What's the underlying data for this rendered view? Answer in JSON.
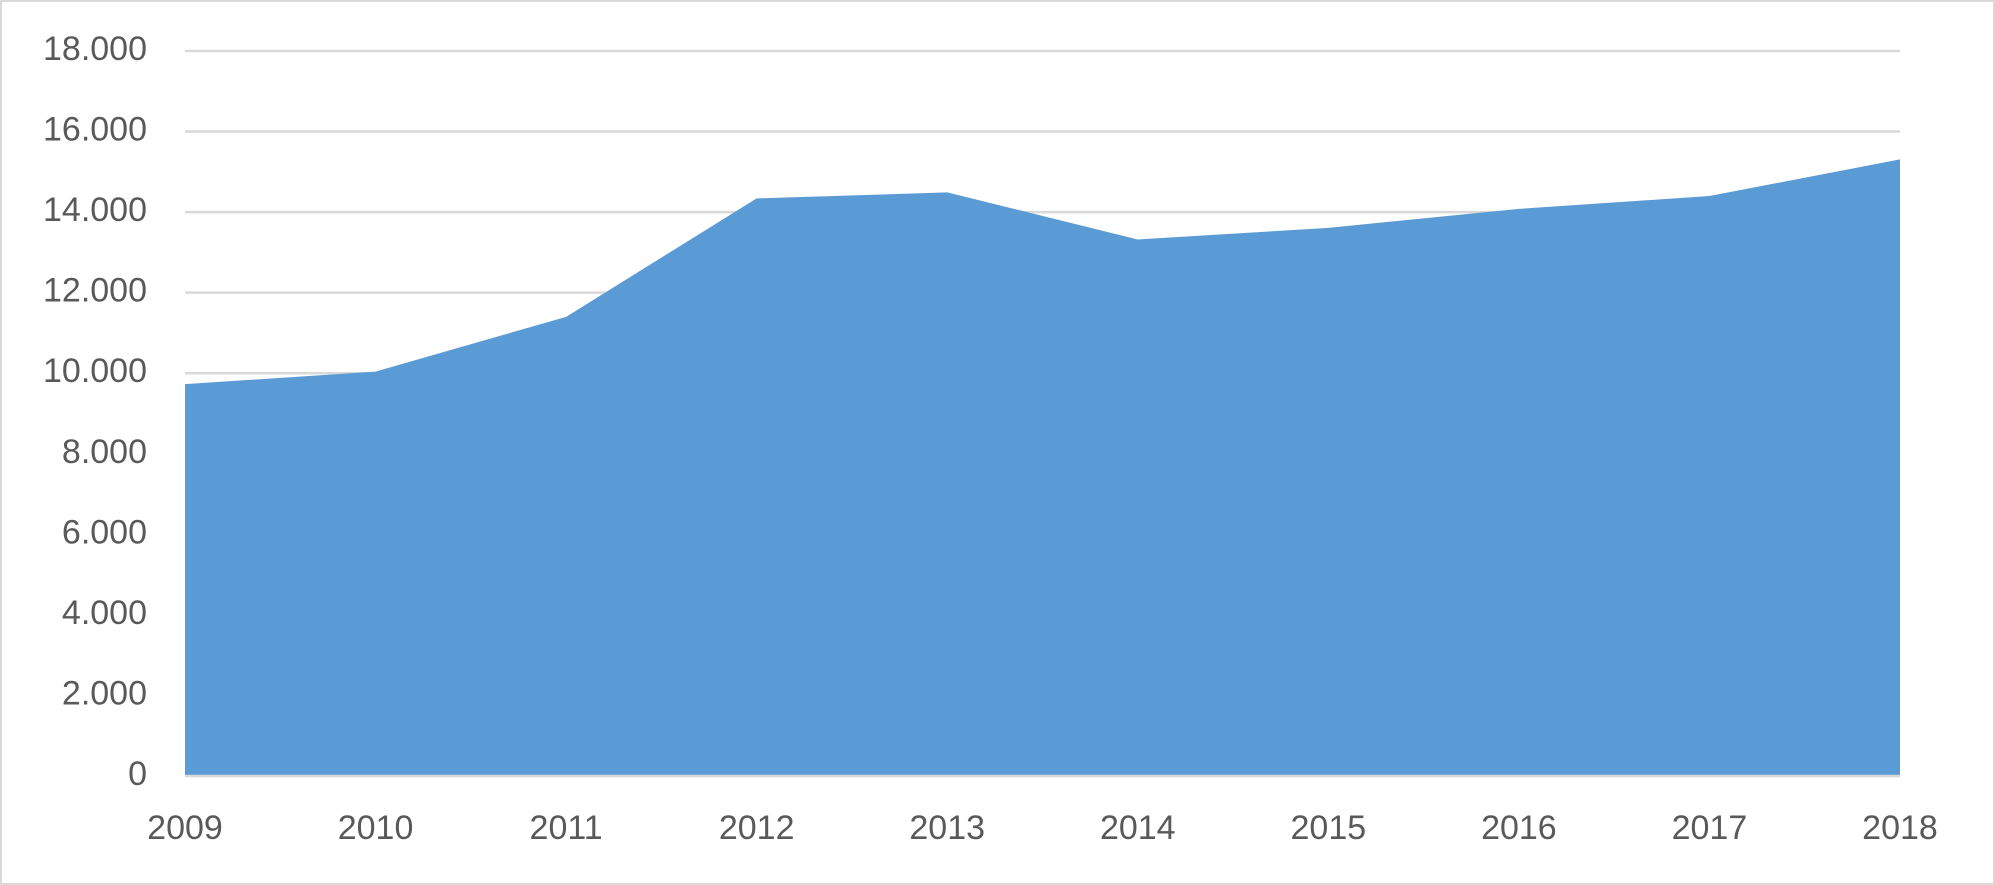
{
  "chart_data": {
    "type": "area",
    "categories": [
      "2009",
      "2010",
      "2011",
      "2012",
      "2013",
      "2014",
      "2015",
      "2016",
      "2017",
      "2018"
    ],
    "values": [
      9730,
      10040,
      11400,
      14340,
      14490,
      13320,
      13610,
      14080,
      14400,
      15310
    ],
    "color": "#5b9bd5",
    "ylim": [
      0,
      18000
    ],
    "yticks": [
      0,
      {
        "value": 2000,
        "label": "2.000"
      },
      {
        "value": 4000,
        "label": "4.000"
      },
      {
        "value": 6000,
        "label": "6.000"
      },
      {
        "value": 8000,
        "label": "8.000"
      },
      {
        "value": 10000,
        "label": "10.000"
      },
      {
        "value": 12000,
        "label": "12.000"
      },
      {
        "value": 14000,
        "label": "14.000"
      },
      {
        "value": 16000,
        "label": "16.000"
      },
      {
        "value": 18000,
        "label": "18.000"
      }
    ],
    "grid": true
  }
}
